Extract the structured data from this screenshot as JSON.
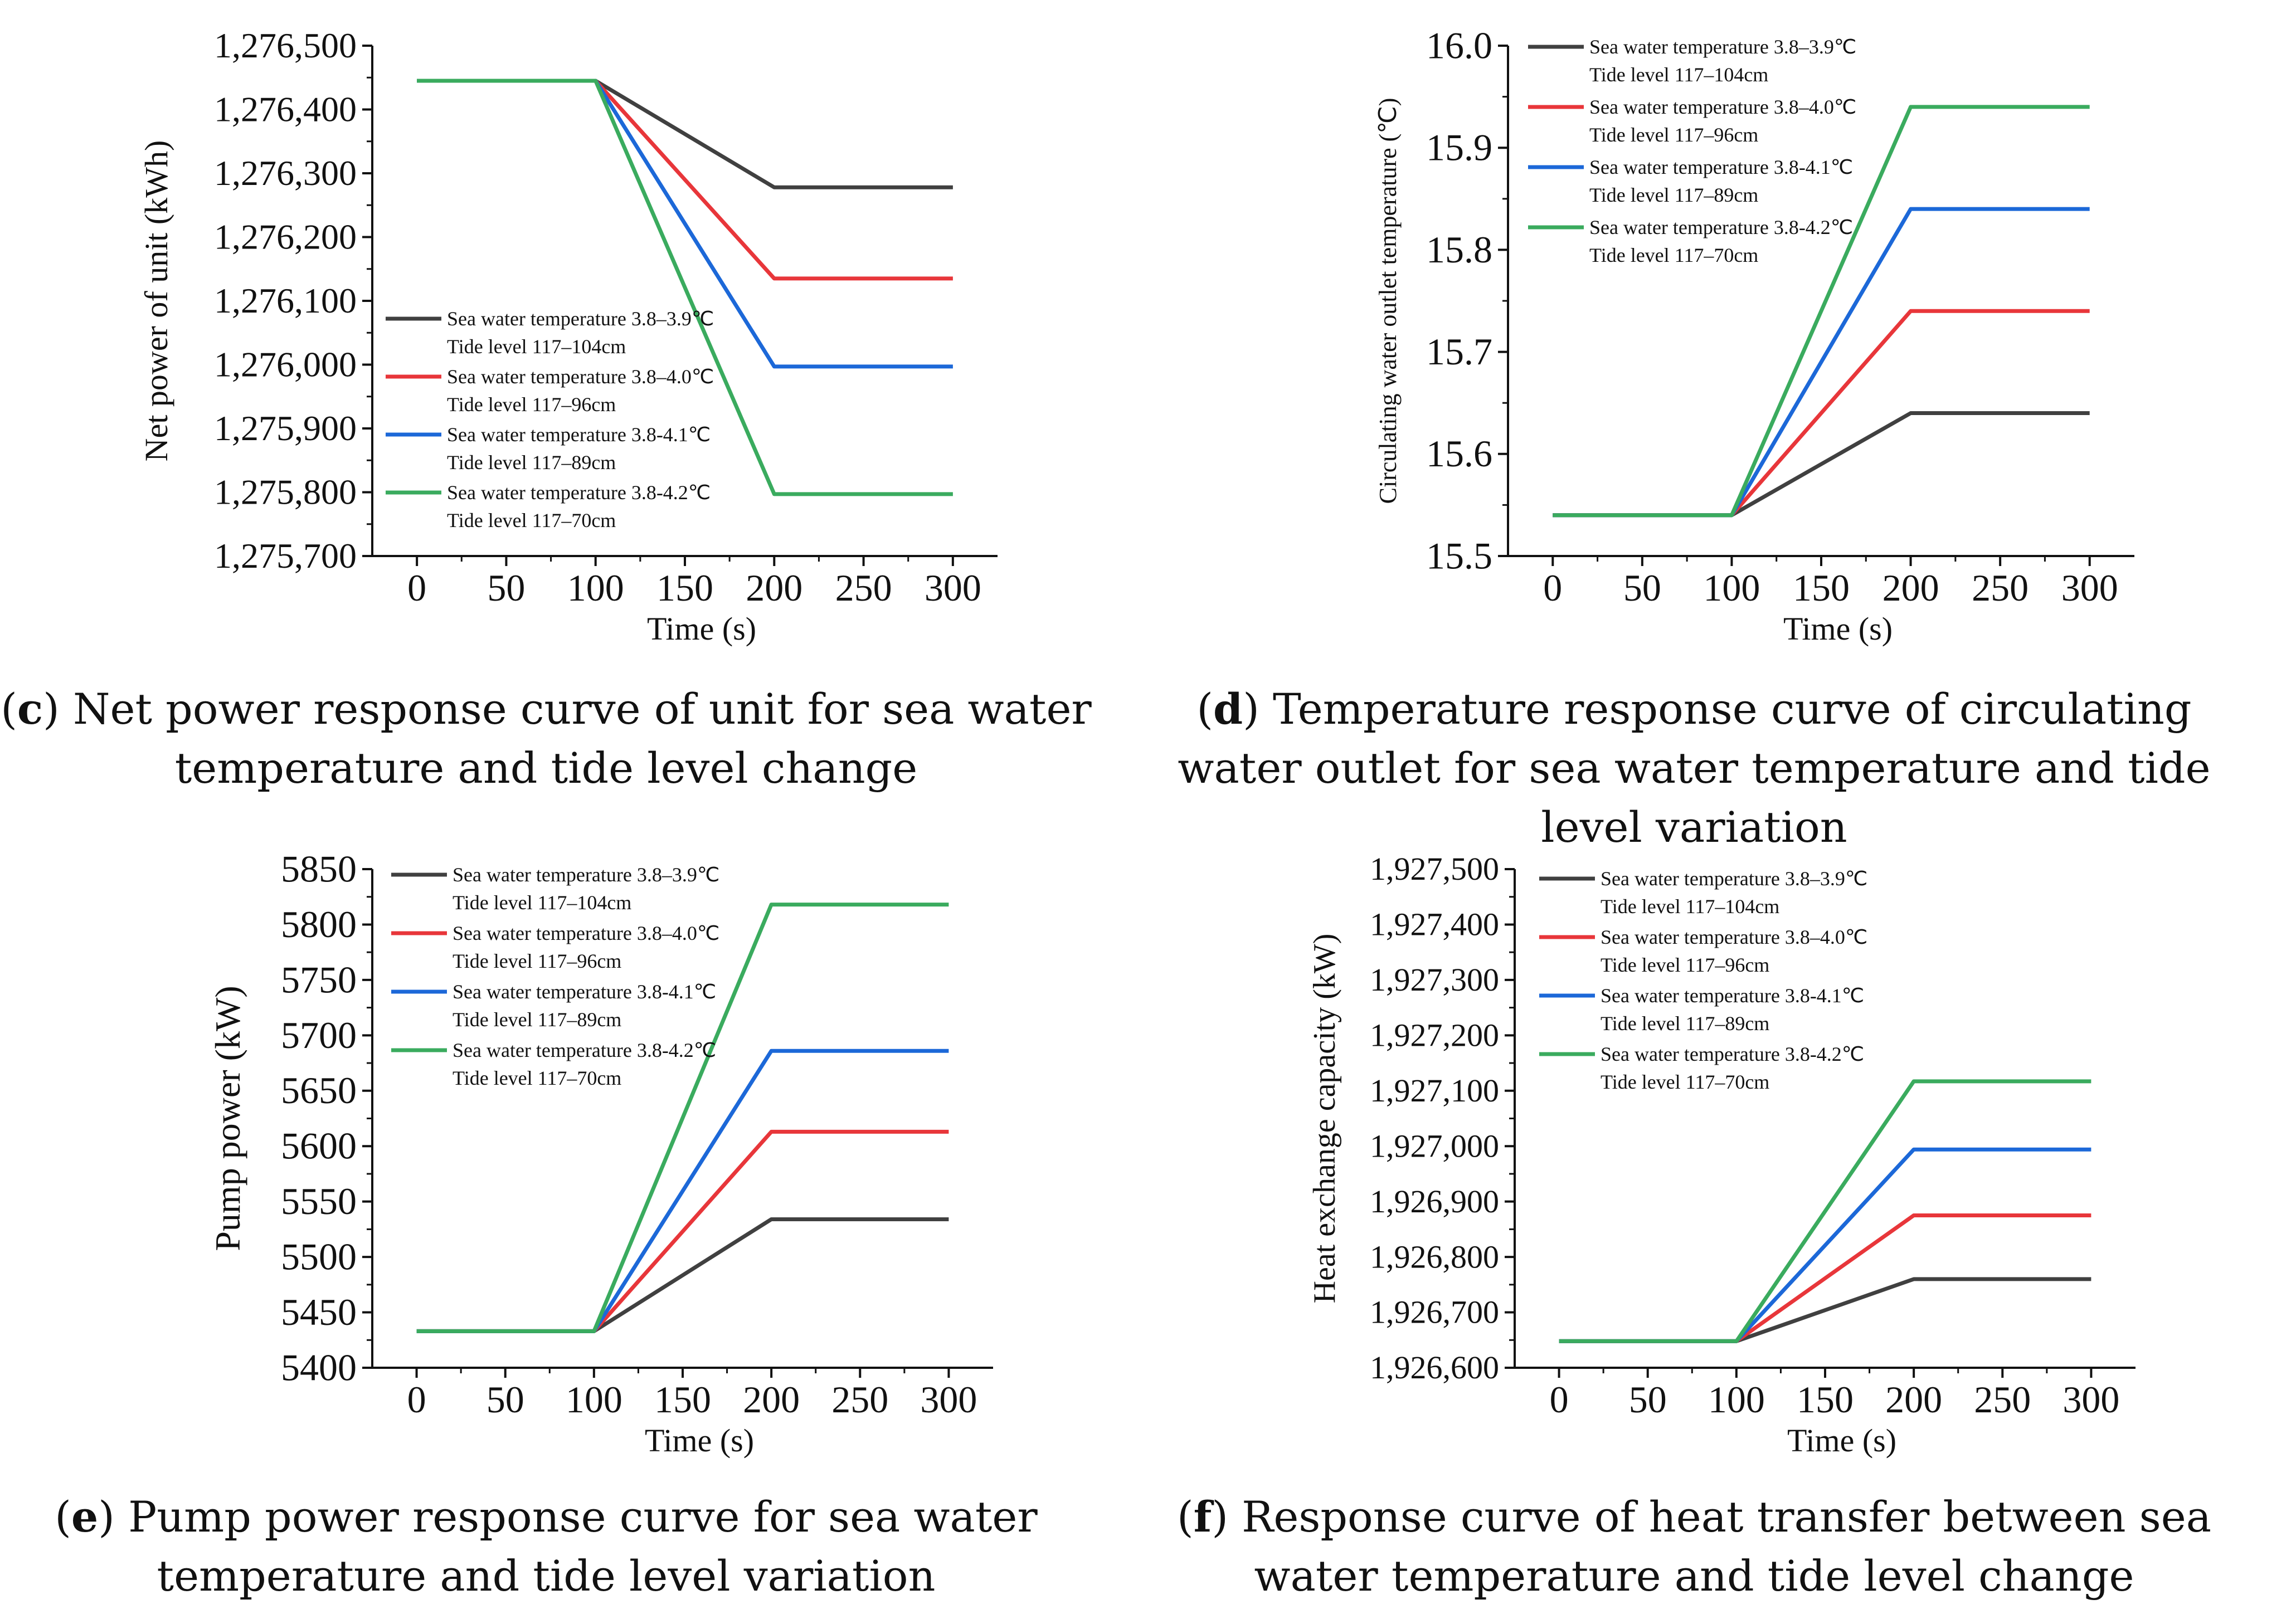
{
  "series_colors": [
    "#404040",
    "#e8363a",
    "#1c68d8",
    "#3aab5e"
  ],
  "legend_entries": [
    {
      "line1": "Sea water temperature 3.8–3.9℃",
      "line2": "Tide level 117–104cm"
    },
    {
      "line1": "Sea water temperature 3.8–4.0℃",
      "line2": "Tide level 117–96cm"
    },
    {
      "line1": "Sea water temperature 3.8-4.1℃",
      "line2": "Tide level 117–89cm"
    },
    {
      "line1": "Sea water temperature 3.8-4.2℃",
      "line2": "Tide level 117–70cm"
    }
  ],
  "chart_data": [
    {
      "type": "line",
      "panel": "c",
      "caption_label": "c",
      "caption_text": "Net power response curve of unit for sea water temperature and tide level change",
      "xlabel": "Time (s)",
      "ylabel": "Net power of unit (kWh)",
      "x_ticks": [
        "0",
        "50",
        "100",
        "150",
        "200",
        "250",
        "300"
      ],
      "y_ticks": [
        "1,275,700",
        "1,275,800",
        "1,275,900",
        "1,276,000",
        "1,276,100",
        "1,276,200",
        "1,276,300",
        "1,276,400",
        "1,276,500"
      ],
      "xlim": [
        -25,
        325
      ],
      "ylim": [
        1275700,
        1276500
      ],
      "x": [
        0,
        100,
        200,
        300
      ],
      "series": [
        {
          "name": "Sea water temperature 3.8–3.9℃, Tide level 117–104cm",
          "values": [
            1276445,
            1276445,
            1276278,
            1276278
          ]
        },
        {
          "name": "Sea water temperature 3.8–4.0℃, Tide level 117–96cm",
          "values": [
            1276445,
            1276445,
            1276135,
            1276135
          ]
        },
        {
          "name": "Sea water temperature 3.8-4.1℃, Tide level 117–89cm",
          "values": [
            1276445,
            1276445,
            1275997,
            1275997
          ]
        },
        {
          "name": "Sea water temperature 3.8-4.2℃, Tide level 117–70cm",
          "values": [
            1276445,
            1276445,
            1275797,
            1275797
          ]
        }
      ]
    },
    {
      "type": "line",
      "panel": "d",
      "caption_label": "d",
      "caption_text": "Temperature response curve of circulating water outlet for sea water temperature and tide level variation",
      "xlabel": "Time (s)",
      "ylabel": "Circulating water outlet temperature (℃)",
      "x_ticks": [
        "0",
        "50",
        "100",
        "150",
        "200",
        "250",
        "300"
      ],
      "y_ticks": [
        "15.5",
        "15.6",
        "15.7",
        "15.8",
        "15.9",
        "16.0"
      ],
      "xlim": [
        -25,
        325
      ],
      "ylim": [
        15.5,
        16.0
      ],
      "x": [
        0,
        100,
        200,
        300
      ],
      "series": [
        {
          "name": "Sea water temperature 3.8–3.9℃, Tide level 117–104cm",
          "values": [
            15.54,
            15.54,
            15.64,
            15.64
          ]
        },
        {
          "name": "Sea water temperature 3.8–4.0℃, Tide level 117–96cm",
          "values": [
            15.54,
            15.54,
            15.74,
            15.74
          ]
        },
        {
          "name": "Sea water temperature 3.8-4.1℃, Tide level 117–89cm",
          "values": [
            15.54,
            15.54,
            15.84,
            15.84
          ]
        },
        {
          "name": "Sea water temperature 3.8-4.2℃, Tide level 117–70cm",
          "values": [
            15.54,
            15.54,
            15.94,
            15.94
          ]
        }
      ]
    },
    {
      "type": "line",
      "panel": "e",
      "caption_label": "e",
      "caption_text": "Pump power response curve for sea water temperature and tide level variation",
      "xlabel": "Time (s)",
      "ylabel": "Pump power (kW)",
      "x_ticks": [
        "0",
        "50",
        "100",
        "150",
        "200",
        "250",
        "300"
      ],
      "y_ticks": [
        "5400",
        "5450",
        "5500",
        "5550",
        "5600",
        "5650",
        "5700",
        "5750",
        "5800",
        "5850"
      ],
      "xlim": [
        -25,
        325
      ],
      "ylim": [
        5400,
        5850
      ],
      "x": [
        0,
        100,
        200,
        300
      ],
      "series": [
        {
          "name": "Sea water temperature 3.8–3.9℃, Tide level 117–104cm",
          "values": [
            5433,
            5433,
            5534,
            5534
          ]
        },
        {
          "name": "Sea water temperature 3.8–4.0℃, Tide level 117–96cm",
          "values": [
            5433,
            5433,
            5613,
            5613
          ]
        },
        {
          "name": "Sea water temperature 3.8-4.1℃, Tide level 117–89cm",
          "values": [
            5433,
            5433,
            5686,
            5686
          ]
        },
        {
          "name": "Sea water temperature 3.8-4.2℃, Tide level 117–70cm",
          "values": [
            5433,
            5433,
            5818,
            5818
          ]
        }
      ]
    },
    {
      "type": "line",
      "panel": "f",
      "caption_label": "f",
      "caption_text": "Response curve of heat transfer between sea water temperature and tide level change",
      "xlabel": "Time (s)",
      "ylabel": "Heat exchange capacity (kW)",
      "x_ticks": [
        "0",
        "50",
        "100",
        "150",
        "200",
        "250",
        "300"
      ],
      "y_ticks": [
        "1,926,600",
        "1,926,700",
        "1,926,800",
        "1,926,900",
        "1,927,000",
        "1,927,100",
        "1,927,200",
        "1,927,300",
        "1,927,400",
        "1,927,500"
      ],
      "xlim": [
        -25,
        325
      ],
      "ylim": [
        1926600,
        1927500
      ],
      "x": [
        0,
        100,
        200,
        300
      ],
      "series": [
        {
          "name": "Sea water temperature 3.8–3.9℃, Tide level 117–104cm",
          "values": [
            1926648,
            1926648,
            1926760,
            1926760
          ]
        },
        {
          "name": "Sea water temperature 3.8–4.0℃, Tide level 117–96cm",
          "values": [
            1926648,
            1926648,
            1926875,
            1926875
          ]
        },
        {
          "name": "Sea water temperature 3.8-4.1℃, Tide level 117–89cm",
          "values": [
            1926648,
            1926648,
            1926994,
            1926994
          ]
        },
        {
          "name": "Sea water temperature 3.8-4.2℃, Tide level 117–70cm",
          "values": [
            1926648,
            1926648,
            1927117,
            1927117
          ]
        }
      ]
    }
  ]
}
